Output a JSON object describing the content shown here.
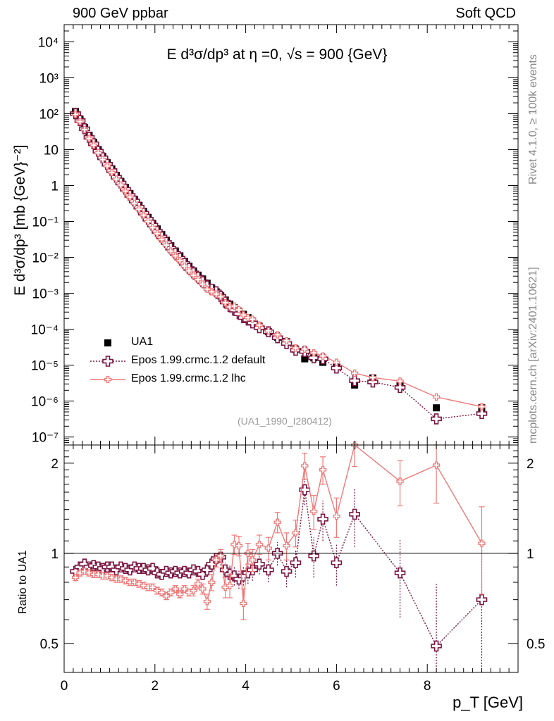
{
  "header": {
    "left": "900 GeV ppbar",
    "right": "Soft QCD"
  },
  "side_labels": {
    "rivet": "Rivet 4.1.0, ≥ 100k events",
    "mcplots": "mcplots.cern.ch [arXiv:2401.10621]"
  },
  "reference_label": "(UA1_1990_I280412)",
  "colors": {
    "data": "#000000",
    "epos_default": "#7a1440",
    "epos_lhc": "#f07878"
  },
  "chart_data": [
    {
      "type": "scatter",
      "title": "E   d³σ/dp³ at η =0, √s = 900 {GeV}",
      "ylabel": "E d³σ/dp³ [mb {GeV}⁻²]",
      "xlabel": "p_T [GeV]",
      "yscale": "log",
      "xlim": [
        0,
        10
      ],
      "ylim": [
        6e-08,
        30000
      ],
      "x_ticks": [
        "0",
        "2",
        "4",
        "6",
        "8"
      ],
      "y_ticks": [
        "10⁻⁷",
        "10⁻⁶",
        "10⁻⁵",
        "10⁻⁴",
        "10⁻³",
        "10⁻²",
        "10⁻¹",
        "1",
        "10",
        "10²",
        "10³",
        "10⁴"
      ],
      "legend_position": "bottom-left",
      "series": [
        {
          "name": "UA1",
          "style": "square markers",
          "x": [
            0.25,
            0.35,
            0.45,
            0.55,
            0.65,
            0.75,
            0.85,
            0.95,
            1.05,
            1.15,
            1.25,
            1.35,
            1.45,
            1.55,
            1.65,
            1.75,
            1.85,
            1.95,
            2.05,
            2.15,
            2.25,
            2.35,
            2.45,
            2.55,
            2.65,
            2.75,
            2.85,
            2.95,
            3.05,
            3.15,
            3.25,
            3.35,
            3.45,
            3.55,
            3.65,
            3.75,
            3.85,
            3.95,
            4.05,
            4.15,
            4.3,
            4.5,
            4.7,
            4.9,
            5.1,
            5.3,
            5.5,
            5.7,
            6.0,
            6.4,
            6.8,
            7.4,
            8.2,
            9.2
          ],
          "y": [
            115,
            70,
            41,
            25,
            16,
            10,
            6.5,
            4.3,
            2.9,
            1.9,
            1.3,
            0.88,
            0.6,
            0.41,
            0.28,
            0.19,
            0.13,
            0.088,
            0.062,
            0.043,
            0.03,
            0.021,
            0.015,
            0.011,
            0.0078,
            0.0057,
            0.0042,
            0.0032,
            0.0025,
            0.0019,
            0.0014,
            0.0011,
            0.00085,
            0.00065,
            0.0005,
            0.0004,
            0.00032,
            0.00026,
            0.00021,
            0.00017,
            0.00012,
            8.5e-05,
            6e-05,
            4.5e-05,
            2.8e-05,
            1.5e-05,
            1.6e-05,
            1.2e-05,
            9e-06,
            2.8e-06,
            4.4e-06,
            2.8e-06,
            6.5e-07,
            6.5e-07
          ]
        },
        {
          "name": "Epos 1.99.crmc.1.2 default",
          "style": "open cross markers, dotted line",
          "x": [
            0.25,
            0.35,
            0.45,
            0.55,
            0.65,
            0.75,
            0.85,
            0.95,
            1.05,
            1.15,
            1.25,
            1.35,
            1.45,
            1.55,
            1.65,
            1.75,
            1.85,
            1.95,
            2.05,
            2.15,
            2.25,
            2.35,
            2.45,
            2.55,
            2.65,
            2.75,
            2.85,
            2.95,
            3.05,
            3.15,
            3.25,
            3.35,
            3.45,
            3.55,
            3.65,
            3.75,
            3.85,
            3.95,
            4.05,
            4.15,
            4.3,
            4.5,
            4.7,
            4.9,
            5.1,
            5.3,
            5.5,
            5.7,
            6.0,
            6.4,
            6.8,
            7.4,
            8.2,
            9.2
          ],
          "y": [
            100,
            64,
            38,
            22,
            14.5,
            9,
            5.9,
            3.9,
            2.6,
            1.7,
            1.17,
            0.79,
            0.53,
            0.37,
            0.25,
            0.17,
            0.115,
            0.079,
            0.053,
            0.037,
            0.026,
            0.018,
            0.013,
            0.0095,
            0.0068,
            0.0049,
            0.0037,
            0.0028,
            0.0021,
            0.0016,
            0.0013,
            0.0011,
            0.00082,
            0.00057,
            0.00043,
            0.00034,
            0.00027,
            0.00021,
            0.00018,
            0.00015,
            0.00011,
            8.5e-05,
            5.8e-05,
            4e-05,
            2.6e-05,
            2.4e-05,
            1.6e-05,
            1.5e-05,
            8.3e-06,
            3.7e-06,
            3.4e-06,
            2.4e-06,
            3.2e-07,
            4.5e-07
          ]
        },
        {
          "name": "Epos 1.99.crmc.1.2 lhc",
          "style": "small cross markers, solid line",
          "x": [
            0.25,
            0.35,
            0.45,
            0.55,
            0.65,
            0.75,
            0.85,
            0.95,
            1.05,
            1.15,
            1.25,
            1.35,
            1.45,
            1.55,
            1.65,
            1.75,
            1.85,
            1.95,
            2.05,
            2.15,
            2.25,
            2.35,
            2.45,
            2.55,
            2.65,
            2.75,
            2.85,
            2.95,
            3.05,
            3.15,
            3.25,
            3.35,
            3.45,
            3.55,
            3.65,
            3.75,
            3.85,
            3.95,
            4.05,
            4.15,
            4.3,
            4.5,
            4.7,
            4.9,
            5.1,
            5.3,
            5.5,
            5.7,
            6.0,
            6.4,
            6.8,
            7.4,
            8.2,
            9.2
          ],
          "y": [
            96,
            60,
            36,
            20.5,
            13.3,
            8.1,
            5.3,
            3.5,
            2.3,
            1.5,
            1.03,
            0.7,
            0.48,
            0.32,
            0.22,
            0.15,
            0.1,
            0.067,
            0.046,
            0.032,
            0.022,
            0.015,
            0.011,
            0.0081,
            0.0057,
            0.0042,
            0.0032,
            0.0024,
            0.0018,
            0.0013,
            0.0011,
            0.00095,
            0.0008,
            0.00055,
            0.00042,
            0.00044,
            0.00035,
            0.00025,
            0.00021,
            0.00019,
            0.00013,
            9e-05,
            7e-05,
            4.8e-05,
            3e-05,
            2.8e-05,
            2.2e-05,
            1.8e-05,
            1.2e-05,
            6e-06,
            4.5e-06,
            3.6e-06,
            1.3e-06,
            7e-07
          ]
        }
      ]
    },
    {
      "type": "scatter",
      "title": "",
      "ylabel": "Ratio to UA1",
      "xlabel": "p_T [GeV]",
      "yscale": "log",
      "xlim": [
        0,
        10
      ],
      "ylim": [
        0.4,
        2.3
      ],
      "reference_line": 1,
      "y_ticks": [
        0.5,
        1,
        2
      ],
      "series": [
        {
          "name": "Epos 1.99.crmc.1.2 default",
          "x": [
            0.25,
            0.35,
            0.45,
            0.55,
            0.65,
            0.75,
            0.85,
            0.95,
            1.05,
            1.15,
            1.25,
            1.35,
            1.45,
            1.55,
            1.65,
            1.75,
            1.85,
            1.95,
            2.05,
            2.15,
            2.25,
            2.35,
            2.45,
            2.55,
            2.65,
            2.75,
            2.85,
            2.95,
            3.05,
            3.15,
            3.25,
            3.35,
            3.45,
            3.55,
            3.65,
            3.75,
            3.85,
            3.95,
            4.05,
            4.15,
            4.3,
            4.5,
            4.7,
            4.9,
            5.1,
            5.3,
            5.5,
            5.7,
            6.0,
            6.4,
            7.4,
            8.2,
            9.2
          ],
          "y": [
            0.87,
            0.9,
            0.92,
            0.9,
            0.91,
            0.9,
            0.89,
            0.9,
            0.9,
            0.88,
            0.9,
            0.89,
            0.88,
            0.9,
            0.89,
            0.89,
            0.88,
            0.89,
            0.86,
            0.85,
            0.87,
            0.86,
            0.87,
            0.86,
            0.87,
            0.86,
            0.88,
            0.87,
            0.85,
            0.88,
            0.92,
            0.96,
            0.97,
            0.88,
            0.85,
            0.84,
            0.82,
            0.84,
            0.86,
            0.88,
            0.92,
            0.88,
            1.0,
            0.87,
            0.93,
            1.63,
            0.98,
            1.3,
            0.93,
            1.35,
            0.86,
            0.49,
            0.7
          ],
          "err": [
            0.02,
            0.02,
            0.02,
            0.02,
            0.02,
            0.02,
            0.02,
            0.02,
            0.02,
            0.02,
            0.02,
            0.02,
            0.02,
            0.02,
            0.02,
            0.02,
            0.02,
            0.02,
            0.02,
            0.02,
            0.02,
            0.02,
            0.02,
            0.02,
            0.02,
            0.02,
            0.03,
            0.03,
            0.03,
            0.03,
            0.04,
            0.05,
            0.06,
            0.05,
            0.06,
            0.06,
            0.06,
            0.06,
            0.07,
            0.07,
            0.07,
            0.08,
            0.09,
            0.1,
            0.1,
            0.18,
            0.15,
            0.2,
            0.15,
            0.3,
            0.25,
            0.3,
            0.35
          ]
        },
        {
          "name": "Epos 1.99.crmc.1.2 lhc",
          "x": [
            0.25,
            0.35,
            0.45,
            0.55,
            0.65,
            0.75,
            0.85,
            0.95,
            1.05,
            1.15,
            1.25,
            1.35,
            1.45,
            1.55,
            1.65,
            1.75,
            1.85,
            1.95,
            2.05,
            2.15,
            2.25,
            2.35,
            2.45,
            2.55,
            2.65,
            2.75,
            2.85,
            2.95,
            3.05,
            3.15,
            3.25,
            3.35,
            3.45,
            3.55,
            3.65,
            3.75,
            3.85,
            3.95,
            4.05,
            4.15,
            4.3,
            4.5,
            4.7,
            4.9,
            5.1,
            5.3,
            5.5,
            5.7,
            6.0,
            6.4,
            7.4,
            8.2,
            9.2
          ],
          "y": [
            0.83,
            0.86,
            0.87,
            0.86,
            0.85,
            0.85,
            0.84,
            0.84,
            0.83,
            0.82,
            0.82,
            0.81,
            0.8,
            0.8,
            0.79,
            0.78,
            0.77,
            0.77,
            0.75,
            0.74,
            0.72,
            0.74,
            0.76,
            0.73,
            0.76,
            0.74,
            0.75,
            0.79,
            0.76,
            0.69,
            0.8,
            0.95,
            0.98,
            0.77,
            0.78,
            1.07,
            1.06,
            0.68,
            1.0,
            0.95,
            1.07,
            1.04,
            1.27,
            1.06,
            1.17,
            1.96,
            1.38,
            1.9,
            1.33,
            2.3,
            1.74,
            1.97,
            1.08
          ],
          "err": [
            0.02,
            0.02,
            0.02,
            0.02,
            0.02,
            0.02,
            0.02,
            0.02,
            0.02,
            0.02,
            0.02,
            0.02,
            0.02,
            0.02,
            0.02,
            0.02,
            0.02,
            0.02,
            0.02,
            0.02,
            0.02,
            0.02,
            0.02,
            0.02,
            0.02,
            0.02,
            0.03,
            0.03,
            0.03,
            0.04,
            0.05,
            0.05,
            0.05,
            0.06,
            0.07,
            0.08,
            0.08,
            0.08,
            0.08,
            0.08,
            0.08,
            0.09,
            0.1,
            0.11,
            0.12,
            0.2,
            0.18,
            0.2,
            0.2,
            0.35,
            0.3,
            0.5,
            0.35
          ]
        }
      ]
    }
  ]
}
